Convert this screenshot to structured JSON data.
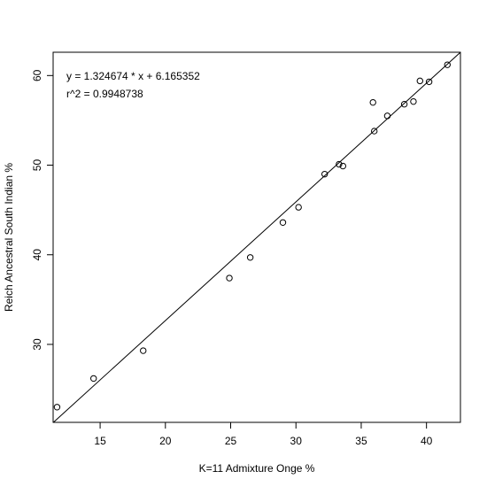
{
  "chart_data": {
    "type": "scatter",
    "title": "",
    "xlabel": "K=11 Admixture Onge %",
    "ylabel": "Reich Ancestral South Indian %",
    "xlim": [
      11.4,
      42.6
    ],
    "ylim": [
      21.3,
      62.6
    ],
    "xticks": [
      15,
      20,
      25,
      30,
      35,
      40
    ],
    "yticks": [
      30,
      40,
      50,
      60
    ],
    "grid": false,
    "annotations": [
      "y = 1.324674 * x + 6.165352",
      "r^2 = 0.9948738"
    ],
    "regression": {
      "slope": 1.324674,
      "intercept": 6.165352
    },
    "points": [
      {
        "x": 11.7,
        "y": 23.0
      },
      {
        "x": 14.5,
        "y": 26.2
      },
      {
        "x": 18.3,
        "y": 29.3
      },
      {
        "x": 24.9,
        "y": 37.4
      },
      {
        "x": 26.5,
        "y": 39.7
      },
      {
        "x": 29.0,
        "y": 43.6
      },
      {
        "x": 30.2,
        "y": 45.3
      },
      {
        "x": 32.2,
        "y": 49.0
      },
      {
        "x": 33.3,
        "y": 50.1
      },
      {
        "x": 33.6,
        "y": 49.9
      },
      {
        "x": 35.9,
        "y": 57.0
      },
      {
        "x": 36.0,
        "y": 53.8
      },
      {
        "x": 37.0,
        "y": 55.5
      },
      {
        "x": 38.3,
        "y": 56.8
      },
      {
        "x": 39.0,
        "y": 57.1
      },
      {
        "x": 39.5,
        "y": 59.4
      },
      {
        "x": 40.2,
        "y": 59.3
      },
      {
        "x": 41.6,
        "y": 61.2
      }
    ]
  }
}
